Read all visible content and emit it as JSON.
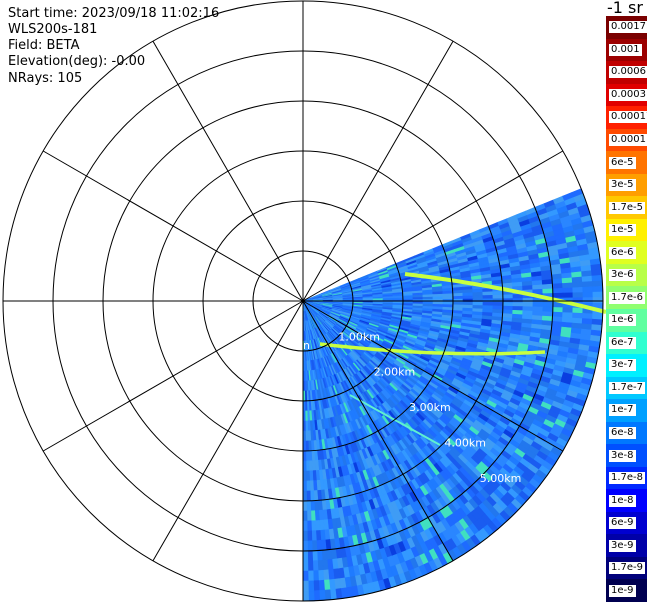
{
  "info": {
    "start_time": "Start time: 2023/09/18 11:02:16",
    "instrument": "WLS200s-181",
    "field": "Field: BETA",
    "elevation": "Elevation(deg): -0.00",
    "nrays": "NRays: 105"
  },
  "range_labels": [
    "1.00km",
    "2.00km",
    "3.00km",
    "4.00km",
    "5.00km"
  ],
  "center_label_fragment": "n",
  "colorbar": {
    "title": "-1 sr",
    "labels": [
      "0.0017",
      "0.001",
      "0.0006",
      "0.0003",
      "0.00017",
      "0.0001",
      "6e-5",
      "3e-5",
      "1.7e-5",
      "1e-5",
      "6e-6",
      "3e-6",
      "1.7e-6",
      "1e-6",
      "6e-7",
      "3e-7",
      "1.7e-7",
      "1e-7",
      "6e-8",
      "3e-8",
      "1.7e-8",
      "1e-8",
      "6e-9",
      "3e-9",
      "1.7e-9",
      "1e-9"
    ],
    "colors": [
      "#7a0000",
      "#9c0000",
      "#c00000",
      "#e00000",
      "#ff2000",
      "#ff4a00",
      "#ff7400",
      "#ff9e00",
      "#ffc800",
      "#fff000",
      "#e0ff20",
      "#b8ff48",
      "#90ff70",
      "#60ffa0",
      "#30ffd0",
      "#00f0ff",
      "#00c8ff",
      "#00a0ff",
      "#0078ff",
      "#0050ff",
      "#0028ff",
      "#0000ff",
      "#0000d0",
      "#0000a8",
      "#00007a",
      "#000050"
    ]
  },
  "scan": {
    "sector_start_deg": -22,
    "sector_end_deg": 90,
    "nrays": 105
  }
}
